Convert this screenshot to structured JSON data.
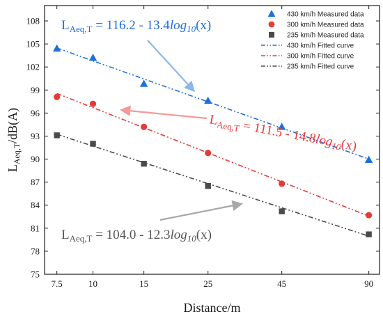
{
  "chart_data": {
    "type": "scatter",
    "x_tick_labels": [
      "7.5",
      "10",
      "15",
      "25",
      "45",
      "90"
    ],
    "y_ticks": [
      75,
      78,
      81,
      84,
      87,
      90,
      93,
      96,
      99,
      102,
      105,
      108
    ],
    "ylim": [
      75,
      110
    ],
    "x_scale": "log",
    "xlim": [
      6.8,
      98
    ],
    "xlabel": "Distance/m",
    "ylabel": {
      "main": "L",
      "sub": "Aeq,T",
      "rest": "/dB(A)"
    },
    "grid": false,
    "legend_position": "top-right",
    "series": [
      {
        "name": "430 km/h Measured data",
        "kind": "measured",
        "marker": "triangle",
        "color": "#1f6fd8",
        "x": [
          7.5,
          10,
          15,
          25,
          45,
          90
        ],
        "y": [
          104.4,
          103.2,
          99.8,
          97.6,
          94.2,
          89.9
        ]
      },
      {
        "name": "300 km/h Measured data",
        "kind": "measured",
        "marker": "circle",
        "color": "#e53a3a",
        "x": [
          7.5,
          10,
          15,
          25,
          45,
          90
        ],
        "y": [
          98.1,
          97.2,
          94.2,
          90.8,
          86.8,
          82.7
        ]
      },
      {
        "name": "235 km/h Measured data",
        "kind": "measured",
        "marker": "square",
        "color": "#4a4a4a",
        "x": [
          7.5,
          10,
          15,
          25,
          45,
          90
        ],
        "y": [
          93.1,
          92.0,
          89.4,
          86.5,
          83.2,
          80.2
        ]
      },
      {
        "name": "430 km/h Fitted curve",
        "kind": "fit",
        "color": "#1f6fd8",
        "coef": [
          116.2,
          -13.4
        ]
      },
      {
        "name": "300 km/h Fitted curve",
        "kind": "fit",
        "color": "#e53a3a",
        "coef": [
          111.5,
          -14.8
        ]
      },
      {
        "name": "235 km/h Fitted curve",
        "kind": "fit",
        "color": "#4a4a4a",
        "coef": [
          104.0,
          -12.3
        ]
      }
    ],
    "annotations": [
      {
        "id": "eq-430",
        "prefix": "L",
        "sub": "Aeq,T",
        "mid": " = 116.2 - 13.4",
        "log": "log",
        "logsub": "10",
        "tail": "(x)",
        "color": "#1f6fd8"
      },
      {
        "id": "eq-300",
        "prefix": "L",
        "sub": "Aeq,T",
        "mid": " = 111.5 - 14.8",
        "log": "log",
        "logsub": "10",
        "tail": "(x)",
        "color": "#e53a3a"
      },
      {
        "id": "eq-235",
        "prefix": "L",
        "sub": "Aeq,T",
        "mid": " = 104.0 - 12.3",
        "log": "log",
        "logsub": "10",
        "tail": "(x)",
        "color": "#555555"
      }
    ],
    "arrow_colors": {
      "eq-430": "#8ab8ec",
      "eq-300": "#f29a9a",
      "eq-235": "#a8a8a8"
    }
  }
}
